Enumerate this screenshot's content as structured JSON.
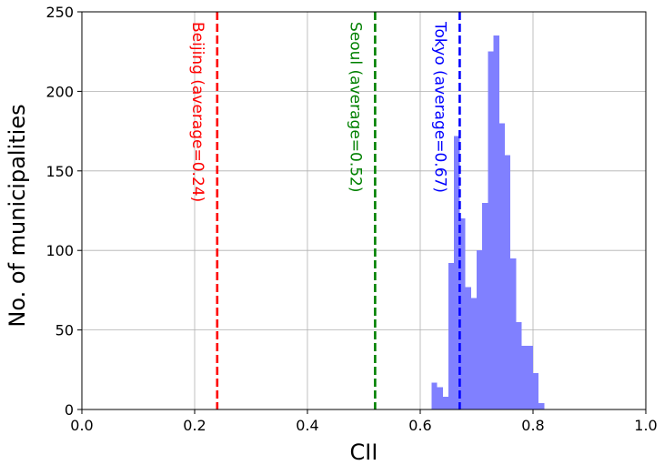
{
  "chart_data": {
    "type": "bar",
    "title": "",
    "xlabel": "CII",
    "ylabel": "No. of municipalities",
    "xlim": [
      0.0,
      1.0
    ],
    "ylim": [
      0,
      250
    ],
    "grid": true,
    "x_ticks": [
      "0.0",
      "0.2",
      "0.4",
      "0.6",
      "0.8",
      "1.0"
    ],
    "y_ticks": [
      "0",
      "50",
      "100",
      "150",
      "200",
      "250"
    ],
    "histogram": {
      "bin_width": 0.01,
      "color": "#8080ff",
      "bins": [
        {
          "start": 0.62,
          "count": 17
        },
        {
          "start": 0.63,
          "count": 14
        },
        {
          "start": 0.64,
          "count": 8
        },
        {
          "start": 0.65,
          "count": 92
        },
        {
          "start": 0.66,
          "count": 172
        },
        {
          "start": 0.67,
          "count": 120
        },
        {
          "start": 0.68,
          "count": 77
        },
        {
          "start": 0.69,
          "count": 70
        },
        {
          "start": 0.7,
          "count": 100
        },
        {
          "start": 0.71,
          "count": 130
        },
        {
          "start": 0.72,
          "count": 225
        },
        {
          "start": 0.73,
          "count": 235
        },
        {
          "start": 0.74,
          "count": 180
        },
        {
          "start": 0.75,
          "count": 160
        },
        {
          "start": 0.76,
          "count": 95
        },
        {
          "start": 0.77,
          "count": 55
        },
        {
          "start": 0.78,
          "count": 40
        },
        {
          "start": 0.79,
          "count": 40
        },
        {
          "start": 0.8,
          "count": 23
        },
        {
          "start": 0.81,
          "count": 4
        }
      ]
    },
    "reference_lines": [
      {
        "label": "Beijing (average=0.24)",
        "x": 0.24,
        "color": "#ff0000",
        "style": "dashed"
      },
      {
        "label": "Seoul (average=0.52)",
        "x": 0.52,
        "color": "#008000",
        "style": "dashed"
      },
      {
        "label": "Tokyo (average=0.67)",
        "x": 0.67,
        "color": "#0000ff",
        "style": "dashed"
      }
    ]
  }
}
